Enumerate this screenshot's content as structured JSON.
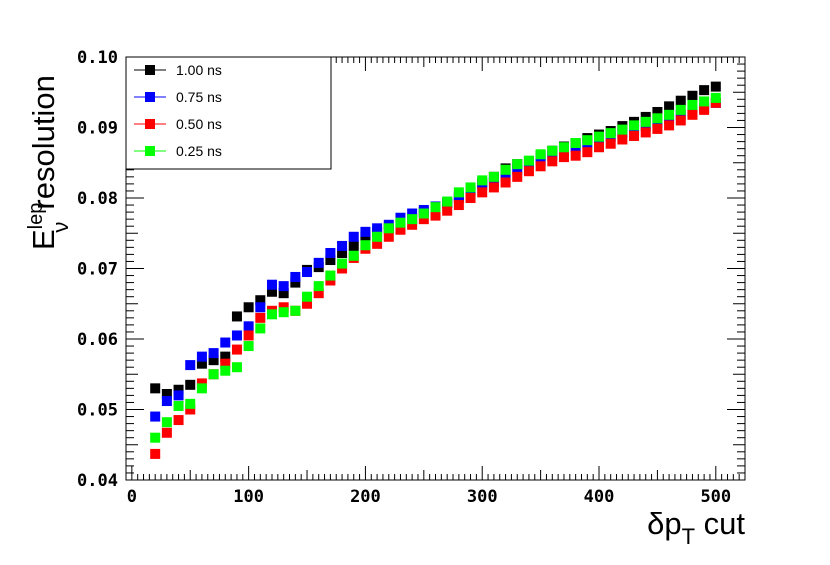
{
  "chart_data": {
    "type": "scatter",
    "xlabel": {
      "main": "δp",
      "sub": "T",
      "suffix": " cut"
    },
    "ylabel": {
      "base": "E",
      "sup": "lep",
      "sub": "ν",
      "suffix": "resolution"
    },
    "xlim": [
      -5,
      525
    ],
    "ylim": [
      0.04,
      0.1
    ],
    "x_ticks": [
      0,
      100,
      200,
      300,
      400,
      500
    ],
    "x_tick_labels": [
      "0",
      "100",
      "200",
      "300",
      "400",
      "500"
    ],
    "y_ticks": [
      0.04,
      0.05,
      0.06,
      0.07,
      0.08,
      0.09,
      0.1
    ],
    "y_tick_labels": [
      "0.04",
      "0.05",
      "0.06",
      "0.07",
      "0.08",
      "0.09",
      "0.10"
    ],
    "grid": false,
    "legend_position": "top-left",
    "x": [
      20,
      30,
      40,
      50,
      60,
      70,
      80,
      90,
      100,
      110,
      120,
      130,
      140,
      150,
      160,
      170,
      180,
      190,
      200,
      210,
      220,
      230,
      240,
      250,
      260,
      270,
      280,
      290,
      300,
      310,
      320,
      330,
      340,
      350,
      360,
      370,
      380,
      390,
      400,
      410,
      420,
      430,
      440,
      450,
      460,
      470,
      480,
      490,
      500
    ],
    "series": [
      {
        "name": "1.00 ns",
        "color": "#000000",
        "values": [
          0.053,
          0.0522,
          0.0528,
          0.0535,
          0.0565,
          0.057,
          0.0575,
          0.0632,
          0.0645,
          0.0655,
          0.0667,
          0.0665,
          0.068,
          0.0698,
          0.0702,
          0.0712,
          0.0722,
          0.0732,
          0.0745,
          0.0752,
          0.0757,
          0.0765,
          0.077,
          0.078,
          0.0787,
          0.0793,
          0.08,
          0.081,
          0.0822,
          0.083,
          0.0842,
          0.0848,
          0.0852,
          0.086,
          0.0867,
          0.0873,
          0.0878,
          0.0885,
          0.089,
          0.0895,
          0.0902,
          0.0908,
          0.0915,
          0.0922,
          0.093,
          0.0938,
          0.0945,
          0.0953,
          0.0958
        ]
      },
      {
        "name": "0.75 ns",
        "color": "#0000ff",
        "values": [
          0.049,
          0.0512,
          0.052,
          0.0563,
          0.0575,
          0.058,
          0.0595,
          0.0605,
          0.0618,
          0.0645,
          0.0677,
          0.0675,
          0.0688,
          0.0695,
          0.0708,
          0.0722,
          0.0732,
          0.0745,
          0.0752,
          0.0757,
          0.0762,
          0.0772,
          0.0778,
          0.0783,
          0.0788,
          0.0793,
          0.0803,
          0.081,
          0.0818,
          0.0823,
          0.0832,
          0.084,
          0.0848,
          0.0853,
          0.086,
          0.0867,
          0.0872,
          0.0878,
          0.0883,
          0.0887,
          0.0892,
          0.0897,
          0.0902,
          0.0907,
          0.0912,
          0.0918,
          0.0922,
          0.0928,
          0.0935
        ]
      },
      {
        "name": "0.50 ns",
        "color": "#ff0000",
        "values": [
          0.0437,
          0.0467,
          0.0485,
          0.05,
          0.0537,
          0.055,
          0.0565,
          0.0585,
          0.0605,
          0.063,
          0.064,
          0.0645,
          0.064,
          0.065,
          0.0665,
          0.0683,
          0.07,
          0.0715,
          0.0728,
          0.0735,
          0.0745,
          0.0755,
          0.0762,
          0.077,
          0.0775,
          0.0782,
          0.079,
          0.08,
          0.0808,
          0.0815,
          0.0822,
          0.083,
          0.0838,
          0.0845,
          0.0852,
          0.0858,
          0.086,
          0.0865,
          0.0872,
          0.0877,
          0.0883,
          0.0888,
          0.0893,
          0.0898,
          0.0903,
          0.091,
          0.0918,
          0.0925,
          0.0935
        ]
      },
      {
        "name": "0.25 ns",
        "color": "#00ff00",
        "values": [
          0.046,
          0.0482,
          0.0505,
          0.0508,
          0.053,
          0.055,
          0.0555,
          0.056,
          0.059,
          0.0615,
          0.0635,
          0.0638,
          0.064,
          0.066,
          0.0675,
          0.069,
          0.0707,
          0.0718,
          0.0733,
          0.0745,
          0.0757,
          0.0765,
          0.077,
          0.0778,
          0.0787,
          0.0795,
          0.0808,
          0.0815,
          0.0825,
          0.083,
          0.084,
          0.0848,
          0.0853,
          0.0862,
          0.0867,
          0.0872,
          0.0878,
          0.0882,
          0.0887,
          0.0892,
          0.0897,
          0.0903,
          0.0908,
          0.0913,
          0.0918,
          0.0925,
          0.0932,
          0.0937,
          0.0942
        ]
      }
    ]
  }
}
